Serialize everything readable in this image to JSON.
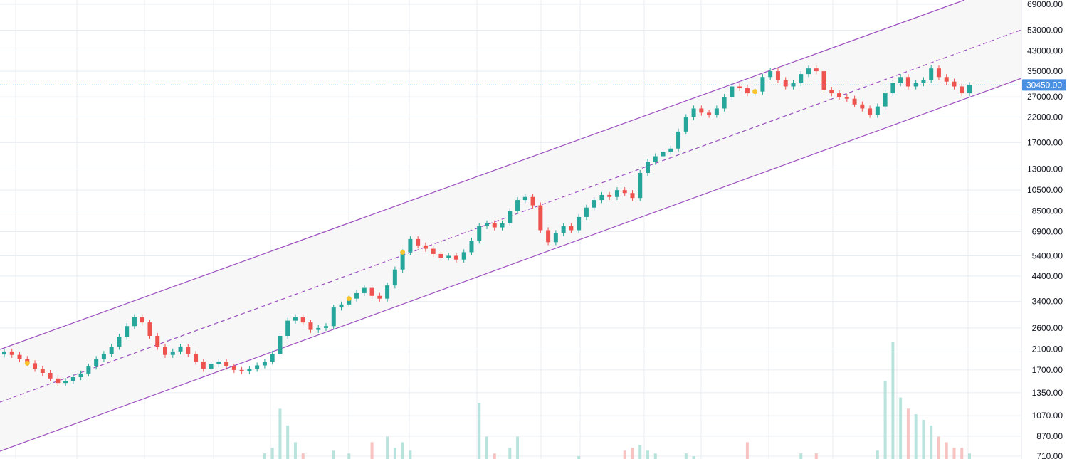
{
  "chart_data": {
    "type": "candlestick",
    "scale": "log",
    "grid": true,
    "legend": "none",
    "y_axis": {
      "side": "right",
      "ticks": [
        "69000.00",
        "53000.00",
        "43000.00",
        "35000.00",
        "27000.00",
        "22000.00",
        "17000.00",
        "13000.00",
        "10500.00",
        "8500.00",
        "6900.00",
        "5400.00",
        "4400.00",
        "3400.00",
        "2600.00",
        "2100.00",
        "1700.00",
        "1350.00",
        "1070.00",
        "870.00",
        "710.00"
      ],
      "ylim": [
        690,
        72000
      ]
    },
    "current_price": "30450.00",
    "close_series": [
      2050,
      1980,
      1900,
      1820,
      1720,
      1650,
      1560,
      1490,
      1520,
      1580,
      1640,
      1760,
      1900,
      2000,
      2150,
      2380,
      2650,
      2900,
      2750,
      2400,
      2150,
      1980,
      2050,
      2150,
      2000,
      1850,
      1720,
      1800,
      1850,
      1760,
      1700,
      1680,
      1720,
      1780,
      1850,
      2000,
      2400,
      2800,
      2900,
      2750,
      2550,
      2600,
      2650,
      3200,
      3300,
      3500,
      3700,
      3900,
      3600,
      3500,
      4000,
      4700,
      5600,
      6400,
      6000,
      5800,
      5500,
      5300,
      5400,
      5200,
      5600,
      6300,
      7300,
      7500,
      7200,
      7500,
      8500,
      9500,
      9800,
      9000,
      7000,
      6200,
      6800,
      7300,
      7000,
      8000,
      8800,
      9500,
      10000,
      9800,
      10500,
      10200,
      9700,
      12500,
      14000,
      14800,
      15500,
      16000,
      19000,
      22000,
      24000,
      23000,
      22500,
      24000,
      27000,
      30000,
      29500,
      28000,
      28500,
      33000,
      35000,
      32000,
      30000,
      31000,
      34000,
      36000,
      35000,
      29000,
      28000,
      27000,
      26500,
      25000,
      24000,
      22500,
      24500,
      28000,
      31000,
      33000,
      30000,
      31000,
      32000,
      36000,
      33000,
      31500,
      30000,
      28000,
      30450
    ],
    "markers": [
      {
        "type": "event-dot",
        "color": "#f7c62f",
        "price": 1820
      },
      {
        "type": "event-dot",
        "color": "#f7c62f",
        "price": 3500
      },
      {
        "type": "event-dot",
        "color": "#f7c62f",
        "price": 5600
      },
      {
        "type": "event-dot",
        "color": "#f7c62f",
        "price": 28500
      }
    ],
    "volume": [
      0,
      0,
      0,
      0,
      0,
      0,
      0,
      0,
      0,
      0,
      0,
      0,
      0,
      0,
      0,
      0,
      0,
      0,
      0,
      0,
      0,
      0,
      0,
      0,
      0,
      0,
      0,
      0,
      0,
      0,
      0,
      0,
      0,
      0,
      20,
      40,
      180,
      120,
      60,
      20,
      0,
      0,
      0,
      30,
      0,
      20,
      0,
      0,
      60,
      0,
      80,
      40,
      60,
      30,
      0,
      0,
      0,
      0,
      0,
      0,
      0,
      0,
      200,
      80,
      20,
      0,
      40,
      80,
      0,
      0,
      0,
      0,
      0,
      0,
      0,
      10,
      0,
      0,
      0,
      0,
      0,
      30,
      40,
      50,
      30,
      20,
      0,
      0,
      0,
      20,
      10,
      0,
      0,
      0,
      0,
      0,
      0,
      60,
      0,
      0,
      0,
      0,
      0,
      0,
      20,
      0,
      20,
      0,
      0,
      0,
      0,
      0,
      0,
      0,
      30,
      280,
      420,
      220,
      180,
      160,
      140,
      120,
      80,
      60,
      40,
      40,
      20
    ],
    "colors": {
      "up": "#26a69a",
      "down": "#ef5350",
      "channel": "#9c4fbf",
      "channel_fill": "#f5f5f5",
      "price_tag": "#4a90e2",
      "grid": "#e8edf2",
      "dot": "#f7c62f"
    }
  }
}
